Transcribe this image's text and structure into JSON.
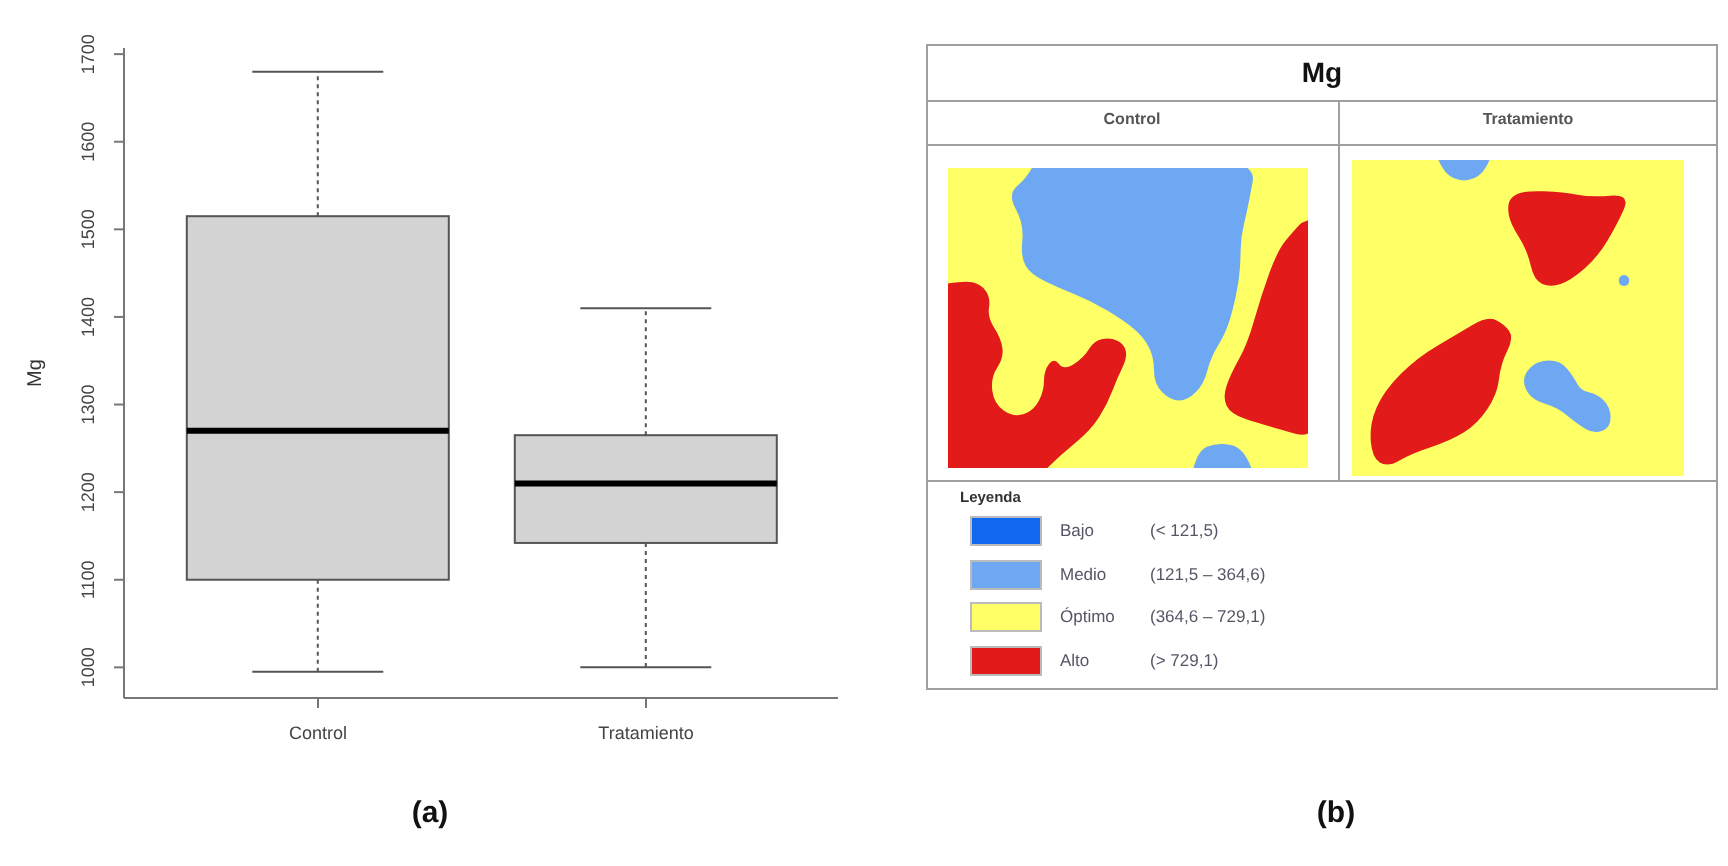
{
  "chart_data": [
    {
      "type": "box",
      "ylabel": "Mg",
      "categories": [
        "Control",
        "Tratamiento"
      ],
      "series": [
        {
          "color": "#d3d3d3",
          "boxes": [
            {
              "low": 995,
              "q1": 1100,
              "median": 1270,
              "q3": 1515,
              "high": 1680
            },
            {
              "low": 1000,
              "q1": 1142,
              "median": 1210,
              "q3": 1265,
              "high": 1410
            }
          ]
        }
      ],
      "ylim": [
        965,
        1707
      ],
      "yticks": [
        1000,
        1100,
        1200,
        1300,
        1400,
        1500,
        1600,
        1700
      ],
      "annotations": [
        "(a)"
      ]
    },
    {
      "type": "other",
      "title": "Mg",
      "legend_title": "Leyenda",
      "legend": "bottom left",
      "series": [
        {
          "name": "Bajo",
          "color": "#1168ee"
        },
        {
          "name": "Medio",
          "color": "#6ea8f2"
        },
        {
          "name": "Óptimo",
          "color": "#ffff66"
        },
        {
          "name": "Alto",
          "color": "#e21a1a"
        }
      ],
      "annotations": [
        "Control",
        "Tratamiento",
        "(< 121,5)",
        "(121,5 – 364,6)",
        "(364,6 – 729,1)",
        "(> 729,1)",
        "(b)"
      ]
    }
  ]
}
